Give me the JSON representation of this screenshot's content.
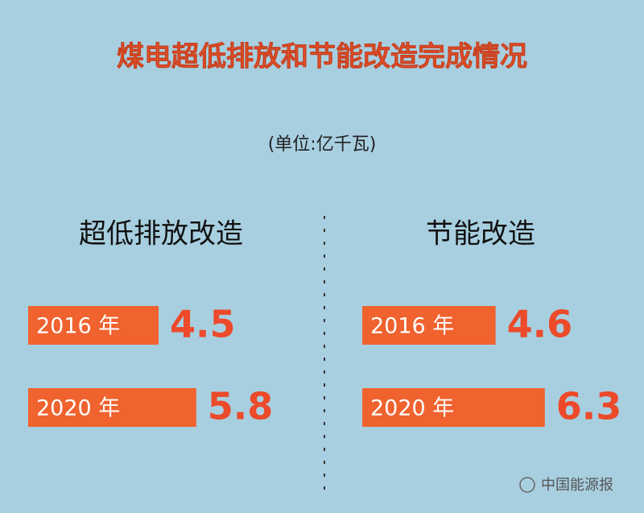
{
  "header": {
    "title": "煤电超低排放和节能改造完成情况",
    "unit": "(单位:亿千瓦)"
  },
  "chart_data": [
    {
      "type": "bar",
      "orientation": "horizontal",
      "title": "超低排放改造",
      "categories": [
        "2016 年",
        "2020 年"
      ],
      "values": [
        4.5,
        5.8
      ],
      "color": "#f0622e",
      "label_color": "#ec4a2a"
    },
    {
      "type": "bar",
      "orientation": "horizontal",
      "title": "节能改造",
      "categories": [
        "2016 年",
        "2020 年"
      ],
      "values": [
        4.6,
        6.3
      ],
      "color": "#f0622e",
      "label_color": "#ec4a2a"
    }
  ],
  "watermark": "中国能源报"
}
